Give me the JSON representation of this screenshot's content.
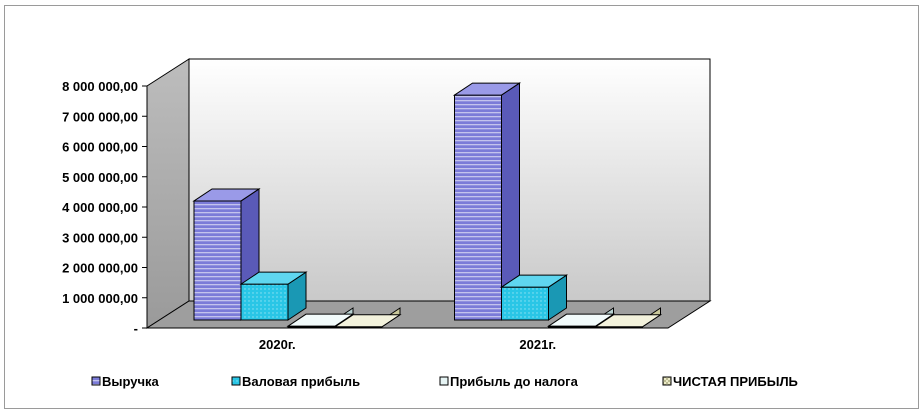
{
  "chart_data": {
    "type": "bar",
    "style": "3d-clustered-column",
    "categories": [
      "2020г.",
      "2021г."
    ],
    "series": [
      {
        "name": "Выручка",
        "values": [
          4200000,
          7700000
        ],
        "color": "#7b7bd8",
        "side_color": "#5a5ab8",
        "top_color": "#9a9ae8",
        "pattern": "horizontal-stripes"
      },
      {
        "name": "Валовая прибыль",
        "values": [
          1450000,
          1350000
        ],
        "color": "#29c6e6",
        "side_color": "#1a98b4",
        "top_color": "#5fd6ef",
        "pattern": "dots"
      },
      {
        "name": "Прибыль до налога",
        "values": [
          60000,
          60000
        ],
        "color": "#e6f4f4",
        "side_color": "#b8d2d2",
        "top_color": "#f2fbfb",
        "pattern": "solid"
      },
      {
        "name": "ЧИСТАЯ ПРИБЫЛЬ",
        "values": [
          40000,
          40000
        ],
        "color": "#ecebc8",
        "side_color": "#c9c79a",
        "top_color": "#f3f2dc",
        "pattern": "checker"
      }
    ],
    "y_ticks": [
      "-",
      "1 000 000,00",
      "2 000 000,00",
      "3 000 000,00",
      "4 000 000,00",
      "5 000 000,00",
      "6 000 000,00",
      "7 000 000,00",
      "8 000 000,00"
    ],
    "ylim": [
      0,
      8000000
    ],
    "grid": false,
    "legend_position": "bottom",
    "title": "",
    "xlabel": "",
    "ylabel": ""
  }
}
